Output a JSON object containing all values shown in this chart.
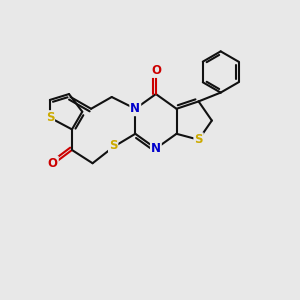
{
  "background_color": "#e8e8e8",
  "atom_colors": {
    "N": "#0000cc",
    "O": "#cc0000",
    "S": "#ccaa00"
  },
  "line_color": "#111111",
  "line_width": 1.5,
  "figsize": [
    3.0,
    3.0
  ],
  "dpi": 100,
  "xlim": [
    0,
    10
  ],
  "ylim": [
    0,
    10
  ],
  "label_fontsize": 8.5,
  "label_bg": "#e8e8e8"
}
